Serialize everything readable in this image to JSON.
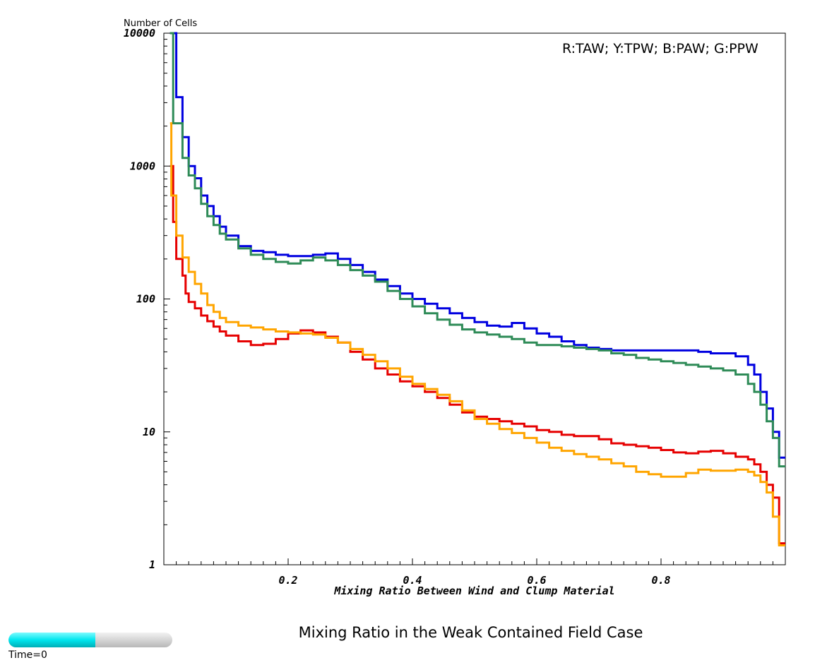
{
  "chart_data": {
    "type": "line",
    "step": true,
    "ylabel": "Number of Cells",
    "xlabel": "Mixing Ratio Between Wind and Clump Material",
    "legend_text": "R:TAW; Y:TPW; B:PAW; G:PPW",
    "legend_position": "top-right",
    "y_scale": "log",
    "ylim": [
      1,
      10000
    ],
    "xlim": [
      0.0,
      1.0
    ],
    "y_ticks": [
      1,
      10,
      100,
      1000,
      10000
    ],
    "y_tick_labels": [
      "1",
      "10",
      "100",
      "1000",
      "10000"
    ],
    "x_ticks": [
      0.2,
      0.4,
      0.6,
      0.8
    ],
    "x_tick_labels": [
      "0.2",
      "0.4",
      "0.6",
      "0.8"
    ],
    "grid": false,
    "series": [
      {
        "color": "#0000e0",
        "points": [
          [
            0.01,
            10000
          ],
          [
            0.02,
            3300
          ],
          [
            0.03,
            1650
          ],
          [
            0.04,
            1000
          ],
          [
            0.05,
            810
          ],
          [
            0.06,
            600
          ],
          [
            0.07,
            500
          ],
          [
            0.08,
            420
          ],
          [
            0.09,
            350
          ],
          [
            0.1,
            300
          ],
          [
            0.12,
            250
          ],
          [
            0.14,
            230
          ],
          [
            0.16,
            225
          ],
          [
            0.18,
            215
          ],
          [
            0.2,
            210
          ],
          [
            0.22,
            210
          ],
          [
            0.24,
            215
          ],
          [
            0.26,
            220
          ],
          [
            0.28,
            200
          ],
          [
            0.3,
            180
          ],
          [
            0.32,
            160
          ],
          [
            0.34,
            140
          ],
          [
            0.36,
            125
          ],
          [
            0.38,
            110
          ],
          [
            0.4,
            100
          ],
          [
            0.42,
            92
          ],
          [
            0.44,
            85
          ],
          [
            0.46,
            78
          ],
          [
            0.48,
            72
          ],
          [
            0.5,
            67
          ],
          [
            0.52,
            63
          ],
          [
            0.54,
            62
          ],
          [
            0.56,
            66
          ],
          [
            0.58,
            60
          ],
          [
            0.6,
            55
          ],
          [
            0.62,
            52
          ],
          [
            0.64,
            48
          ],
          [
            0.66,
            45
          ],
          [
            0.68,
            43
          ],
          [
            0.7,
            42
          ],
          [
            0.72,
            41
          ],
          [
            0.74,
            41
          ],
          [
            0.76,
            41
          ],
          [
            0.78,
            41
          ],
          [
            0.8,
            41
          ],
          [
            0.82,
            41
          ],
          [
            0.84,
            41
          ],
          [
            0.86,
            40
          ],
          [
            0.88,
            39
          ],
          [
            0.9,
            39
          ],
          [
            0.92,
            37
          ],
          [
            0.94,
            32
          ],
          [
            0.95,
            27
          ],
          [
            0.96,
            20
          ],
          [
            0.97,
            15
          ],
          [
            0.98,
            10
          ],
          [
            0.99,
            6.4
          ],
          [
            1.0,
            6.4
          ]
        ]
      },
      {
        "color": "#2e8b57",
        "points": [
          [
            0.01,
            10000
          ],
          [
            0.015,
            2100
          ],
          [
            0.03,
            1150
          ],
          [
            0.04,
            850
          ],
          [
            0.05,
            680
          ],
          [
            0.06,
            520
          ],
          [
            0.07,
            420
          ],
          [
            0.08,
            360
          ],
          [
            0.09,
            310
          ],
          [
            0.1,
            280
          ],
          [
            0.12,
            240
          ],
          [
            0.14,
            215
          ],
          [
            0.16,
            200
          ],
          [
            0.18,
            190
          ],
          [
            0.2,
            185
          ],
          [
            0.22,
            195
          ],
          [
            0.24,
            205
          ],
          [
            0.26,
            195
          ],
          [
            0.28,
            180
          ],
          [
            0.3,
            165
          ],
          [
            0.32,
            150
          ],
          [
            0.34,
            135
          ],
          [
            0.36,
            115
          ],
          [
            0.38,
            100
          ],
          [
            0.4,
            88
          ],
          [
            0.42,
            78
          ],
          [
            0.44,
            70
          ],
          [
            0.46,
            64
          ],
          [
            0.48,
            59
          ],
          [
            0.5,
            56
          ],
          [
            0.52,
            54
          ],
          [
            0.54,
            52
          ],
          [
            0.56,
            50
          ],
          [
            0.58,
            47
          ],
          [
            0.6,
            45
          ],
          [
            0.62,
            45
          ],
          [
            0.64,
            44
          ],
          [
            0.66,
            43
          ],
          [
            0.68,
            42
          ],
          [
            0.7,
            41
          ],
          [
            0.72,
            39
          ],
          [
            0.74,
            38
          ],
          [
            0.76,
            36
          ],
          [
            0.78,
            35
          ],
          [
            0.8,
            34
          ],
          [
            0.82,
            33
          ],
          [
            0.84,
            32
          ],
          [
            0.86,
            31
          ],
          [
            0.88,
            30
          ],
          [
            0.9,
            29
          ],
          [
            0.92,
            27
          ],
          [
            0.94,
            23
          ],
          [
            0.95,
            20
          ],
          [
            0.96,
            16
          ],
          [
            0.97,
            12
          ],
          [
            0.98,
            9
          ],
          [
            0.99,
            5.5
          ],
          [
            1.0,
            5.5
          ]
        ]
      },
      {
        "color": "#e60000",
        "points": [
          [
            0.01,
            1000
          ],
          [
            0.015,
            380
          ],
          [
            0.02,
            200
          ],
          [
            0.03,
            150
          ],
          [
            0.035,
            110
          ],
          [
            0.04,
            95
          ],
          [
            0.05,
            85
          ],
          [
            0.06,
            75
          ],
          [
            0.07,
            68
          ],
          [
            0.08,
            62
          ],
          [
            0.09,
            57
          ],
          [
            0.1,
            53
          ],
          [
            0.12,
            48
          ],
          [
            0.14,
            45
          ],
          [
            0.16,
            46
          ],
          [
            0.18,
            50
          ],
          [
            0.2,
            55
          ],
          [
            0.22,
            58
          ],
          [
            0.24,
            56
          ],
          [
            0.26,
            52
          ],
          [
            0.28,
            47
          ],
          [
            0.3,
            40
          ],
          [
            0.32,
            35
          ],
          [
            0.34,
            30
          ],
          [
            0.36,
            27
          ],
          [
            0.38,
            24
          ],
          [
            0.4,
            22
          ],
          [
            0.42,
            20
          ],
          [
            0.44,
            18
          ],
          [
            0.46,
            16
          ],
          [
            0.48,
            14
          ],
          [
            0.5,
            13
          ],
          [
            0.52,
            12.5
          ],
          [
            0.54,
            12
          ],
          [
            0.56,
            11.5
          ],
          [
            0.58,
            11
          ],
          [
            0.6,
            10.3
          ],
          [
            0.62,
            10
          ],
          [
            0.64,
            9.5
          ],
          [
            0.66,
            9.3
          ],
          [
            0.68,
            9.3
          ],
          [
            0.7,
            8.8
          ],
          [
            0.72,
            8.2
          ],
          [
            0.74,
            8
          ],
          [
            0.76,
            7.8
          ],
          [
            0.78,
            7.6
          ],
          [
            0.8,
            7.3
          ],
          [
            0.82,
            7.0
          ],
          [
            0.84,
            6.9
          ],
          [
            0.86,
            7.1
          ],
          [
            0.88,
            7.2
          ],
          [
            0.9,
            6.9
          ],
          [
            0.92,
            6.5
          ],
          [
            0.94,
            6.2
          ],
          [
            0.95,
            5.7
          ],
          [
            0.96,
            5.0
          ],
          [
            0.97,
            4.0
          ],
          [
            0.98,
            3.2
          ],
          [
            0.99,
            1.45
          ],
          [
            1.0,
            1.45
          ]
        ]
      },
      {
        "color": "#ffa500",
        "points": [
          [
            0.01,
            2100
          ],
          [
            0.012,
            600
          ],
          [
            0.02,
            300
          ],
          [
            0.03,
            205
          ],
          [
            0.04,
            160
          ],
          [
            0.05,
            130
          ],
          [
            0.06,
            110
          ],
          [
            0.07,
            90
          ],
          [
            0.08,
            80
          ],
          [
            0.09,
            72
          ],
          [
            0.1,
            67
          ],
          [
            0.12,
            63
          ],
          [
            0.14,
            61
          ],
          [
            0.16,
            59
          ],
          [
            0.18,
            57
          ],
          [
            0.2,
            56
          ],
          [
            0.22,
            55
          ],
          [
            0.24,
            54
          ],
          [
            0.26,
            51
          ],
          [
            0.28,
            47
          ],
          [
            0.3,
            42
          ],
          [
            0.32,
            38
          ],
          [
            0.34,
            34
          ],
          [
            0.36,
            30
          ],
          [
            0.38,
            26
          ],
          [
            0.4,
            23
          ],
          [
            0.42,
            21
          ],
          [
            0.44,
            19
          ],
          [
            0.46,
            17
          ],
          [
            0.48,
            14.5
          ],
          [
            0.5,
            12.5
          ],
          [
            0.52,
            11.5
          ],
          [
            0.54,
            10.5
          ],
          [
            0.56,
            9.8
          ],
          [
            0.58,
            9.0
          ],
          [
            0.6,
            8.3
          ],
          [
            0.62,
            7.6
          ],
          [
            0.64,
            7.2
          ],
          [
            0.66,
            6.8
          ],
          [
            0.68,
            6.5
          ],
          [
            0.7,
            6.2
          ],
          [
            0.72,
            5.8
          ],
          [
            0.74,
            5.5
          ],
          [
            0.76,
            5.0
          ],
          [
            0.78,
            4.8
          ],
          [
            0.8,
            4.6
          ],
          [
            0.82,
            4.6
          ],
          [
            0.84,
            4.9
          ],
          [
            0.86,
            5.2
          ],
          [
            0.88,
            5.1
          ],
          [
            0.9,
            5.1
          ],
          [
            0.92,
            5.2
          ],
          [
            0.94,
            5.0
          ],
          [
            0.95,
            4.7
          ],
          [
            0.96,
            4.2
          ],
          [
            0.97,
            3.5
          ],
          [
            0.98,
            2.3
          ],
          [
            0.99,
            1.4
          ],
          [
            1.0,
            1.4
          ]
        ]
      }
    ]
  },
  "caption": "Mixing Ratio in the Weak Contained Field Case",
  "time_slider": {
    "label": "Time=0",
    "progress": 0.53
  }
}
